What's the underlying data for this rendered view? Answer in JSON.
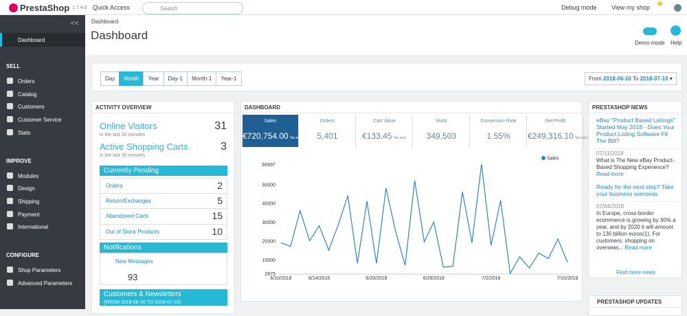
{
  "header": {
    "logo": "PrestaShop",
    "version": "1.7.4.0",
    "quick_access": "Quick Access",
    "search_placeholder": "Search",
    "debug": "Debug mode",
    "view_shop": "View my shop",
    "notifications": "6"
  },
  "sidebar": {
    "dashboard": "Dashboard",
    "sections": [
      {
        "title": "SELL",
        "items": [
          "Orders",
          "Catalog",
          "Customers",
          "Customer Service",
          "Stats"
        ]
      },
      {
        "title": "IMPROVE",
        "items": [
          "Modules",
          "Design",
          "Shipping",
          "Payment",
          "International"
        ]
      },
      {
        "title": "CONFIGURE",
        "items": [
          "Shop Parameters",
          "Advanced Parameters"
        ]
      }
    ]
  },
  "page": {
    "breadcrumb": "Dashboard",
    "title": "Dashboard",
    "demo_mode": "Demo mode",
    "help": "Help"
  },
  "filters": {
    "periods": [
      "Day",
      "Month",
      "Year",
      "Day-1",
      "Month-1",
      "Year-1"
    ],
    "from": "From",
    "from_date": "2018-06-10",
    "to": "To",
    "to_date": "2018-07-10"
  },
  "activity": {
    "title": "ACTIVITY OVERVIEW",
    "online": {
      "label": "Online Visitors",
      "sub": "in the last 30 minutes",
      "value": 31
    },
    "carts": {
      "label": "Active Shopping Carts",
      "sub": "in the last 30 minutes",
      "value": 3
    },
    "pending": {
      "title": "Currently Pending",
      "rows": [
        {
          "label": "Orders",
          "value": 2
        },
        {
          "label": "Return/Exchanges",
          "value": 5
        },
        {
          "label": "Abandoned Carts",
          "value": 15
        },
        {
          "label": "Out of Stock Products",
          "value": 10
        }
      ]
    },
    "notifications": {
      "title": "Notifications",
      "label": "New Messages",
      "value": 93
    },
    "customers": {
      "title": "Customers & Newsletters",
      "sub": "(FROM 2018-06-10 TO 2018-07-10)"
    }
  },
  "dashboard": {
    "title": "DASHBOARD",
    "kpis": [
      {
        "label": "Sales",
        "value": "€720,754.00",
        "note": "Tax excl."
      },
      {
        "label": "Orders",
        "value": "5,401"
      },
      {
        "label": "Cart Value",
        "value": "€133.45",
        "note": "Tax excl."
      },
      {
        "label": "Visits",
        "value": "349,503"
      },
      {
        "label": "Conversion Rate",
        "value": "1.55%"
      },
      {
        "label": "Net Profit",
        "value": "€249,316.10",
        "note": "Tax excl."
      }
    ],
    "chart": {
      "type": "line",
      "categories": [
        "6/10/2018",
        null,
        null,
        null,
        "6/14/2018",
        null,
        null,
        null,
        null,
        null,
        "6/20/2018",
        null,
        null,
        null,
        null,
        null,
        "6/26/2018",
        null,
        null,
        null,
        null,
        null,
        "7/2/2018",
        null,
        null,
        null,
        null,
        null,
        null,
        null,
        "7/10/2018"
      ],
      "series": [
        {
          "name": "Sales",
          "color": "#2f86c2",
          "values": [
            19000,
            17000,
            36000,
            20000,
            28000,
            15000,
            28500,
            44000,
            8000,
            41000,
            8000,
            48000,
            25000,
            7000,
            52000,
            19500,
            30000,
            6000,
            6500,
            46000,
            19000,
            60697,
            17500,
            41500,
            2675,
            11500,
            5500,
            13500,
            10500,
            21000,
            8500
          ]
        }
      ],
      "ylim": [
        2675,
        60697
      ],
      "yticks": [
        2675,
        10000,
        20000,
        30000,
        40000,
        50000,
        60697
      ],
      "legend": "top-right"
    }
  },
  "news": {
    "title": "PRESTASHOP NEWS",
    "items": [
      {
        "title": "eBay \"Product Based Listings\" Started May 2018 - Does Your Product Listing Software Fit The Bill?",
        "date": "07/11/2018",
        "text": "What is The New eBay Product-Based Shopping Experience?",
        "more": "Read more"
      },
      {
        "title": "Ready for the next step? Take your business overseas",
        "date": "07/04/2018",
        "text": "In Europe, cross-border ecommerce is growing by 30% a year, and by 2020 it will amount to 130 billion euros(1). For customers, shopping on overseas...",
        "more": "Read more"
      }
    ],
    "find_more": "Find more news"
  },
  "updates": {
    "title": "PRESTASHOP UPDATES"
  }
}
